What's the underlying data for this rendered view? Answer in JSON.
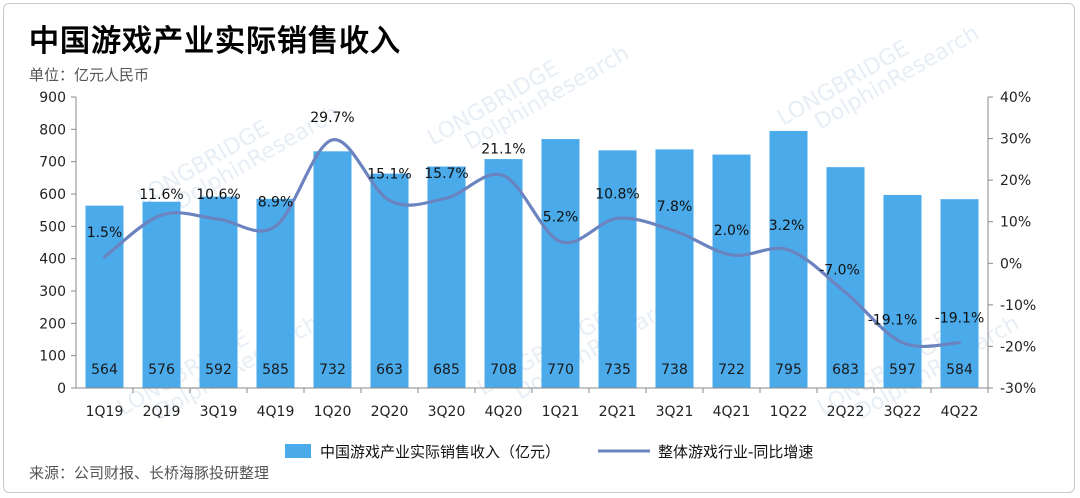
{
  "title": "中国游戏产业实际销售收入",
  "unit": "单位：亿元人民币",
  "source": "来源：公司财报、长桥海豚投研整理",
  "watermark_primary": "DolphinResearch",
  "watermark_secondary": "LONGBRIDGE",
  "colors": {
    "bar": "#4aaaea",
    "line": "#6b84c0",
    "axis": "#888888"
  },
  "chart_data": {
    "type": "bar",
    "categories": [
      "1Q19",
      "2Q19",
      "3Q19",
      "4Q19",
      "1Q20",
      "2Q20",
      "3Q20",
      "4Q20",
      "1Q21",
      "2Q21",
      "3Q21",
      "4Q21",
      "1Q22",
      "2Q22",
      "3Q22",
      "4Q22"
    ],
    "series": [
      {
        "name": "中国游戏产业实际销售收入（亿元）",
        "type": "bar",
        "axis": "left",
        "values": [
          564,
          576,
          592,
          585,
          732,
          663,
          685,
          708,
          770,
          735,
          738,
          722,
          795,
          683,
          597,
          584
        ],
        "labels": [
          "564",
          "576",
          "592",
          "585",
          "732",
          "663",
          "685",
          "708",
          "770",
          "735",
          "738",
          "722",
          "795",
          "683",
          "597",
          "584"
        ]
      },
      {
        "name": "整体游戏行业-同比增速",
        "type": "line",
        "axis": "right",
        "values": [
          1.5,
          11.6,
          10.6,
          8.9,
          29.7,
          15.1,
          15.7,
          21.1,
          5.2,
          10.8,
          7.8,
          2.0,
          3.2,
          -7.0,
          -19.1,
          -19.1
        ],
        "labels": [
          "1.5%",
          "11.6%",
          "10.6%",
          "8.9%",
          "29.7%",
          "15.1%",
          "15.7%",
          "21.1%",
          "5.2%",
          "10.8%",
          "7.8%",
          "2.0%",
          "3.2%",
          "-7.0%",
          "-19.1%",
          "-19.1%"
        ]
      }
    ],
    "y_left": {
      "ylim": [
        0,
        900
      ],
      "ticks": [
        "0",
        "100",
        "200",
        "300",
        "400",
        "500",
        "600",
        "700",
        "800",
        "900"
      ]
    },
    "y_right": {
      "ylim": [
        -30,
        40
      ],
      "ticks": [
        "-30%",
        "-20%",
        "-10%",
        "0%",
        "10%",
        "20%",
        "30%",
        "40%"
      ]
    },
    "legend_position": "bottom",
    "grid": false
  }
}
